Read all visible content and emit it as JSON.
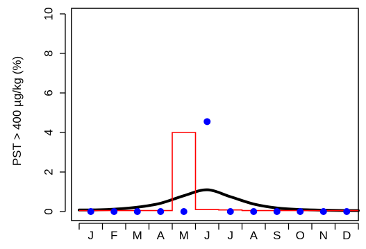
{
  "chart_data": {
    "type": "line",
    "title": "",
    "xlabel": "",
    "ylabel": "PST > 400 µg/kg (%)",
    "ylim": [
      0,
      10
    ],
    "yticks": [
      "0",
      "2",
      "4",
      "6",
      "8",
      "10"
    ],
    "categories": [
      "J",
      "F",
      "M",
      "A",
      "M",
      "J",
      "J",
      "A",
      "S",
      "O",
      "N",
      "D"
    ],
    "grid": false,
    "legend": "none",
    "series": [
      {
        "kind": "line",
        "style": "thick-smooth",
        "color": "#000000",
        "values": [
          0.08,
          0.12,
          0.22,
          0.42,
          0.8,
          1.1,
          0.75,
          0.38,
          0.18,
          0.1,
          0.07,
          0.05
        ]
      },
      {
        "kind": "step",
        "style": "thin-step",
        "color": "#ff0000",
        "values": [
          0.05,
          0.05,
          0.05,
          0.05,
          4.0,
          0.1,
          0.08,
          0.05,
          0.05,
          0.05,
          0.05,
          0.05
        ]
      },
      {
        "kind": "scatter",
        "style": "points",
        "color": "#0000ff",
        "values": [
          0.0,
          0.0,
          0.0,
          0.0,
          0.0,
          4.55,
          0.0,
          0.0,
          0.0,
          0.0,
          0.0,
          0.0
        ]
      }
    ]
  }
}
